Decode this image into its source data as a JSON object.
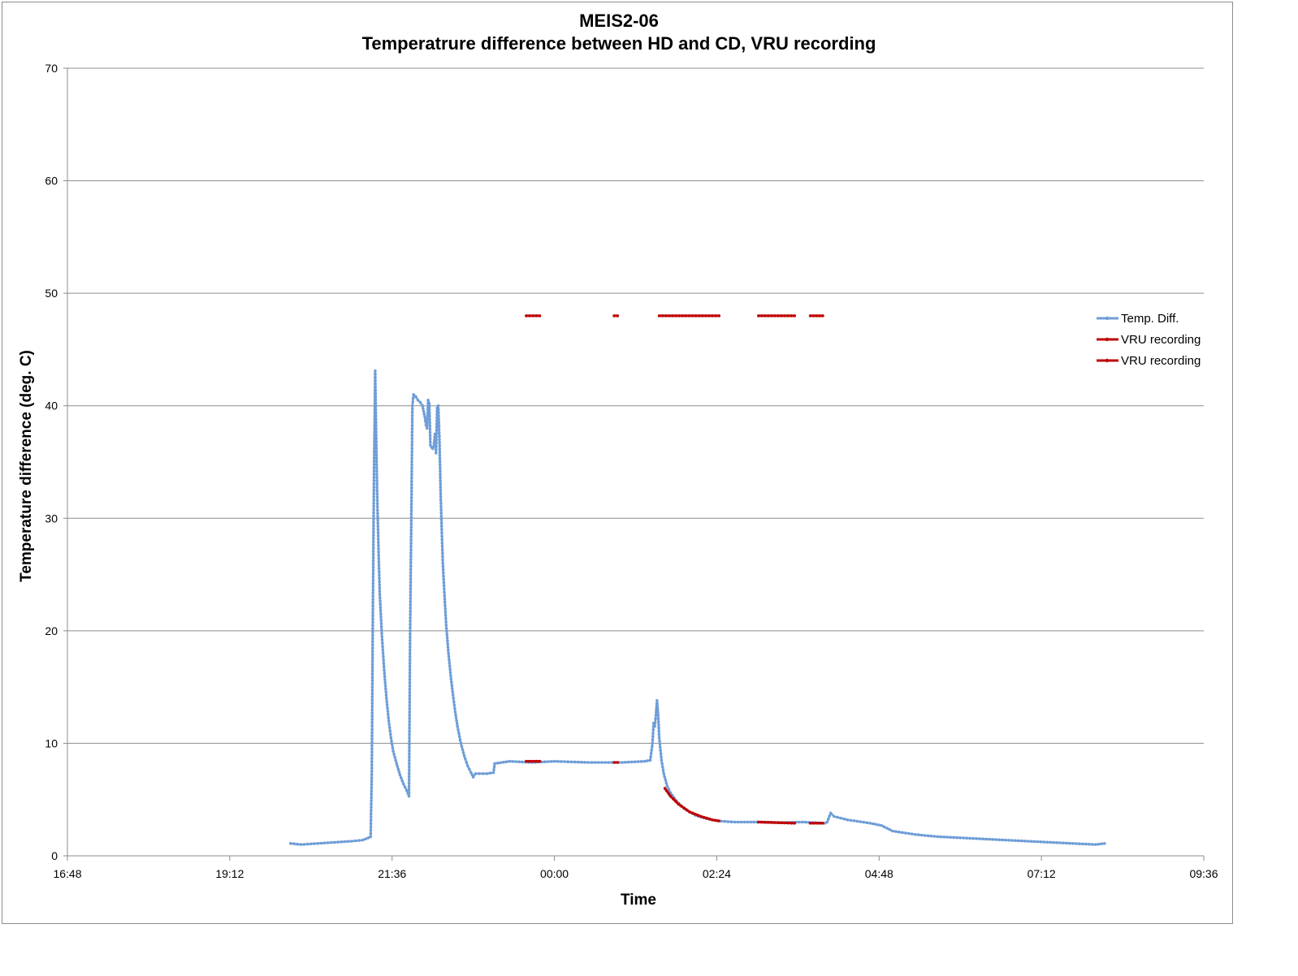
{
  "chart_data": {
    "type": "line",
    "title": "MEIS2-06",
    "subtitle": "Temperatrure difference between HD and CD, VRU recording",
    "xlabel": "Time",
    "ylabel": "Temperature difference (deg. C)",
    "ylim": [
      0,
      70
    ],
    "yticks": [
      "0",
      "10",
      "20",
      "30",
      "40",
      "50",
      "60",
      "70"
    ],
    "xlim": [
      "16:48",
      "09:36"
    ],
    "xticks": [
      "16:48",
      "19:12",
      "21:36",
      "00:00",
      "02:24",
      "04:48",
      "07:12",
      "09:36"
    ],
    "grid": "horizontal",
    "legend_position": "right",
    "colors": {
      "temp": "#6f9ed8",
      "vru": "#c00000"
    },
    "series": [
      {
        "name": "Temp. Diff.",
        "color": "#6f9ed8",
        "points": [
          [
            "20:06",
            1.1
          ],
          [
            "20:15",
            1.0
          ],
          [
            "20:30",
            1.1
          ],
          [
            "20:45",
            1.2
          ],
          [
            "21:00",
            1.3
          ],
          [
            "21:10",
            1.4
          ],
          [
            "21:15",
            1.6
          ],
          [
            "21:17",
            1.7
          ],
          [
            "21:18",
            7.5
          ],
          [
            "21:19",
            22.5
          ],
          [
            "21:20",
            34.5
          ],
          [
            "21:21",
            43.1
          ],
          [
            "21:22",
            36.5
          ],
          [
            "21:23",
            31.0
          ],
          [
            "21:24",
            27.0
          ],
          [
            "21:25",
            23.5
          ],
          [
            "21:27",
            19.5
          ],
          [
            "21:29",
            16.5
          ],
          [
            "21:31",
            14.0
          ],
          [
            "21:33",
            12.0
          ],
          [
            "21:35",
            10.5
          ],
          [
            "21:37",
            9.3
          ],
          [
            "21:40",
            8.2
          ],
          [
            "21:43",
            7.2
          ],
          [
            "21:46",
            6.4
          ],
          [
            "21:49",
            5.8
          ],
          [
            "21:51",
            5.3
          ],
          [
            "21:52",
            20.0
          ],
          [
            "21:53",
            29.5
          ],
          [
            "21:54",
            40.0
          ],
          [
            "21:55",
            41.0
          ],
          [
            "21:57",
            40.8
          ],
          [
            "21:59",
            40.5
          ],
          [
            "22:01",
            40.3
          ],
          [
            "22:03",
            40.0
          ],
          [
            "22:05",
            39.0
          ],
          [
            "22:06",
            38.3
          ],
          [
            "22:07",
            38.0
          ],
          [
            "22:08",
            40.5
          ],
          [
            "22:09",
            40.2
          ],
          [
            "22:10",
            36.5
          ],
          [
            "22:11",
            36.3
          ],
          [
            "22:12",
            36.2
          ],
          [
            "22:13",
            36.4
          ],
          [
            "22:14",
            37.5
          ],
          [
            "22:15",
            35.8
          ],
          [
            "22:16",
            39.8
          ],
          [
            "22:17",
            40.0
          ],
          [
            "22:18",
            37.0
          ],
          [
            "22:19",
            32.5
          ],
          [
            "22:20",
            29.0
          ],
          [
            "22:21",
            26.0
          ],
          [
            "22:22",
            24.0
          ],
          [
            "22:24",
            20.5
          ],
          [
            "22:26",
            18.0
          ],
          [
            "22:28",
            16.0
          ],
          [
            "22:30",
            14.3
          ],
          [
            "22:32",
            12.8
          ],
          [
            "22:34",
            11.5
          ],
          [
            "22:37",
            10.0
          ],
          [
            "22:40",
            8.9
          ],
          [
            "22:43",
            8.0
          ],
          [
            "22:46",
            7.4
          ],
          [
            "22:48",
            7.0
          ],
          [
            "22:50",
            7.3
          ],
          [
            "23:00",
            7.3
          ],
          [
            "23:06",
            7.4
          ],
          [
            "23:07",
            8.2
          ],
          [
            "23:20",
            8.4
          ],
          [
            "23:40",
            8.3
          ],
          [
            "00:00",
            8.4
          ],
          [
            "00:30",
            8.3
          ],
          [
            "01:00",
            8.3
          ],
          [
            "01:20",
            8.4
          ],
          [
            "01:25",
            8.5
          ],
          [
            "01:27",
            10.0
          ],
          [
            "01:28",
            11.8
          ],
          [
            "01:29",
            11.5
          ],
          [
            "01:30",
            12.5
          ],
          [
            "01:31",
            13.8
          ],
          [
            "01:32",
            12.5
          ],
          [
            "01:33",
            10.5
          ],
          [
            "01:35",
            8.5
          ],
          [
            "01:37",
            7.3
          ],
          [
            "01:40",
            6.2
          ],
          [
            "01:43",
            5.6
          ],
          [
            "01:48",
            4.9
          ],
          [
            "01:55",
            4.2
          ],
          [
            "02:05",
            3.6
          ],
          [
            "02:15",
            3.3
          ],
          [
            "02:25",
            3.1
          ],
          [
            "02:40",
            3.0
          ],
          [
            "03:00",
            3.0
          ],
          [
            "03:20",
            2.95
          ],
          [
            "03:40",
            3.0
          ],
          [
            "04:00",
            2.9
          ],
          [
            "04:02",
            3.0
          ],
          [
            "04:05",
            3.8
          ],
          [
            "04:08",
            3.5
          ],
          [
            "04:20",
            3.2
          ],
          [
            "04:40",
            2.9
          ],
          [
            "04:50",
            2.7
          ],
          [
            "05:00",
            2.2
          ],
          [
            "05:20",
            1.9
          ],
          [
            "05:40",
            1.7
          ],
          [
            "06:00",
            1.6
          ],
          [
            "06:20",
            1.5
          ],
          [
            "06:40",
            1.4
          ],
          [
            "07:00",
            1.3
          ],
          [
            "07:20",
            1.2
          ],
          [
            "07:40",
            1.1
          ],
          [
            "08:00",
            1.0
          ],
          [
            "08:08",
            1.1
          ]
        ]
      },
      {
        "name": "VRU recording",
        "color": "#c00000",
        "segments": [
          [
            [
              "23:35",
              8.4
            ],
            [
              "23:47",
              8.4
            ]
          ],
          [
            [
              "00:53",
              8.3
            ],
            [
              "00:56",
              8.3
            ]
          ],
          [
            [
              "01:38",
              6.0
            ],
            [
              "01:43",
              5.3
            ],
            [
              "01:50",
              4.6
            ],
            [
              "02:00",
              3.9
            ],
            [
              "02:10",
              3.5
            ],
            [
              "02:20",
              3.2
            ],
            [
              "02:26",
              3.1
            ]
          ],
          [
            [
              "03:01",
              3.0
            ],
            [
              "03:33",
              2.9
            ]
          ],
          [
            [
              "03:47",
              2.9
            ],
            [
              "03:58",
              2.9
            ]
          ]
        ]
      },
      {
        "name": "VRU recording",
        "color": "#c00000",
        "segments": [
          [
            [
              "23:35",
              48.0
            ],
            [
              "23:47",
              48.0
            ]
          ],
          [
            [
              "00:53",
              48.0
            ],
            [
              "00:56",
              48.0
            ]
          ],
          [
            [
              "01:33",
              48.0
            ],
            [
              "02:26",
              48.0
            ]
          ],
          [
            [
              "03:01",
              48.0
            ],
            [
              "03:33",
              48.0
            ]
          ],
          [
            [
              "03:47",
              48.0
            ],
            [
              "03:58",
              48.0
            ]
          ]
        ]
      }
    ]
  }
}
